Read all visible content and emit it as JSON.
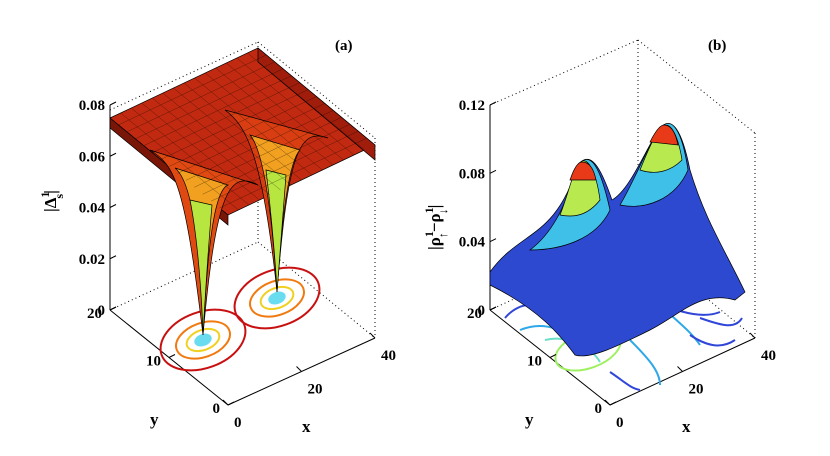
{
  "chart_data": [
    {
      "type": "surface",
      "panel_label": "(a)",
      "zlabel": "|Δs1|",
      "zlabel_parts": {
        "base": "|Δ",
        "sup": "1",
        "sub": "s",
        "end": "|"
      },
      "xlabel": "x",
      "ylabel": "y",
      "xlim": [
        0,
        40
      ],
      "ylim": [
        0,
        20
      ],
      "zlim": [
        0,
        0.08
      ],
      "x_ticks": [
        "0",
        "20",
        "40"
      ],
      "y_ticks": [
        "0",
        "10",
        "20"
      ],
      "z_ticks": [
        "0",
        "0.02",
        "0.04",
        "0.06",
        "0.08"
      ],
      "colormap": "hot",
      "background_level": 0.072,
      "features": [
        {
          "kind": "dip",
          "x": 10,
          "y": 10,
          "depth_to": 0.0,
          "contours_on_floor": true
        },
        {
          "kind": "dip",
          "x": 30,
          "y": 10,
          "depth_to": 0.0,
          "contours_on_floor": true
        }
      ]
    },
    {
      "type": "surface",
      "panel_label": "(b)",
      "zlabel": "|ρ↑1−ρ↓1|",
      "zlabel_parts": {
        "a": "|ρ",
        "asup": "1",
        "asub": "↑",
        "mid": "−ρ",
        "bsup": "1",
        "bsub": "↓",
        "end": "|"
      },
      "xlabel": "x",
      "ylabel": "y",
      "xlim": [
        0,
        40
      ],
      "ylim": [
        0,
        20
      ],
      "zlim": [
        0,
        0.12
      ],
      "x_ticks": [
        "0",
        "20",
        "40"
      ],
      "y_ticks": [
        "0",
        "10",
        "20"
      ],
      "z_ticks": [
        "0",
        "0.04",
        "0.08",
        "0.12"
      ],
      "colormap": "jet",
      "features": [
        {
          "kind": "peak",
          "x": 10,
          "y": 10,
          "height": 0.1
        },
        {
          "kind": "peak",
          "x": 30,
          "y": 10,
          "height": 0.1
        }
      ]
    }
  ]
}
